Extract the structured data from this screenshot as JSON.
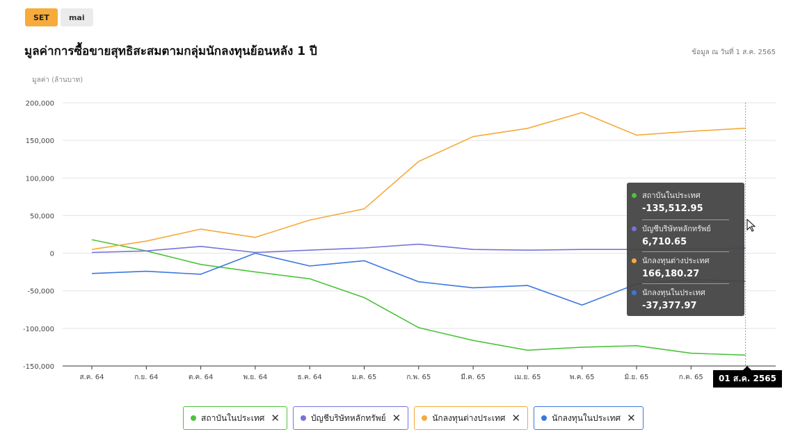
{
  "tabs": [
    {
      "label": "SET",
      "active": true
    },
    {
      "label": "mai",
      "active": false
    }
  ],
  "title": "มูลค่าการซื้อขายสุทธิสะสมตามกลุ่มนักลงทุนย้อนหลัง 1 ปี",
  "as_of": "ข้อมูล ณ วันที่ 1 ส.ค. 2565",
  "colors": {
    "accent": "#f7ab3a",
    "institution": "#4cc33b",
    "broker": "#7573d9",
    "foreign": "#f5a93a",
    "local": "#3b77e0"
  },
  "chart_data": {
    "type": "line",
    "ylabel": "มูลค่า (ล้านบาท)",
    "ylim": [
      -150000,
      200000
    ],
    "yticks": [
      200000,
      150000,
      100000,
      50000,
      0,
      -50000,
      -100000,
      -150000
    ],
    "ytick_labels": [
      "200,000",
      "150,000",
      "100,000",
      "50,000",
      "0",
      "-50,000",
      "-100,000",
      "-150,000"
    ],
    "categories": [
      "ส.ค. 64",
      "ก.ย. 64",
      "ต.ค. 64",
      "พ.ย. 64",
      "ธ.ค. 64",
      "ม.ค. 65",
      "ก.พ. 65",
      "มี.ค. 65",
      "เม.ย. 65",
      "พ.ค. 65",
      "มิ.ย. 65",
      "ก.ค. 65",
      "01 ส.ค. 2565"
    ],
    "x_tick_labels": [
      "ส.ค. 64",
      "ก.ย. 64",
      "ต.ค. 64",
      "พ.ย. 64",
      "ธ.ค. 64",
      "ม.ค. 65",
      "ก.พ. 65",
      "มี.ค. 65",
      "เม.ย. 65",
      "พ.ค. 65",
      "มิ.ย. 65",
      "ก.ค. 65"
    ],
    "grid": true,
    "legend_position": "bottom",
    "series": [
      {
        "name": "สถาบันในประเทศ",
        "color": "#4cc33b",
        "values": [
          18000,
          3000,
          -15000,
          -25000,
          -34000,
          -59000,
          -99000,
          -116000,
          -129000,
          -125000,
          -123000,
          -133000,
          -135512.95
        ]
      },
      {
        "name": "บัญชีบริษัทหลักทรัพย์",
        "color": "#7573d9",
        "values": [
          1000,
          3000,
          9000,
          1000,
          4000,
          7000,
          12000,
          5000,
          4000,
          5000,
          5000,
          6000,
          6710.65
        ]
      },
      {
        "name": "นักลงทุนต่างประเทศ",
        "color": "#f5a93a",
        "values": [
          5000,
          16000,
          32000,
          21000,
          44000,
          59000,
          122000,
          155000,
          166000,
          187000,
          157000,
          162000,
          166180.27
        ]
      },
      {
        "name": "นักลงทุนในประเทศ",
        "color": "#3b77e0",
        "values": [
          -27000,
          -24000,
          -28000,
          0,
          -17000,
          -10000,
          -38000,
          -46000,
          -43000,
          -69000,
          -41000,
          -35000,
          -37377.97
        ]
      }
    ],
    "hover": {
      "x_label": "01 ส.ค. 2565",
      "values": [
        {
          "name": "สถาบันในประเทศ",
          "value": "-135,512.95",
          "color": "#4cc33b"
        },
        {
          "name": "บัญชีบริษัทหลักทรัพย์",
          "value": "6,710.65",
          "color": "#7573d9"
        },
        {
          "name": "นักลงทุนต่างประเทศ",
          "value": "166,180.27",
          "color": "#f5a93a"
        },
        {
          "name": "นักลงทุนในประเทศ",
          "value": "-37,377.97",
          "color": "#3b77e0"
        }
      ]
    }
  },
  "legend": [
    {
      "label": "สถาบันในประเทศ",
      "color": "#4cc33b",
      "close_icon": "close-icon"
    },
    {
      "label": "บัญชีบริษัทหลักทรัพย์",
      "color": "#7573d9",
      "close_icon": "close-icon"
    },
    {
      "label": "นักลงทุนต่างประเทศ",
      "color": "#f5a93a",
      "close_icon": "close-icon"
    },
    {
      "label": "นักลงทุนในประเทศ",
      "color": "#3b77e0",
      "close_icon": "close-icon"
    }
  ]
}
